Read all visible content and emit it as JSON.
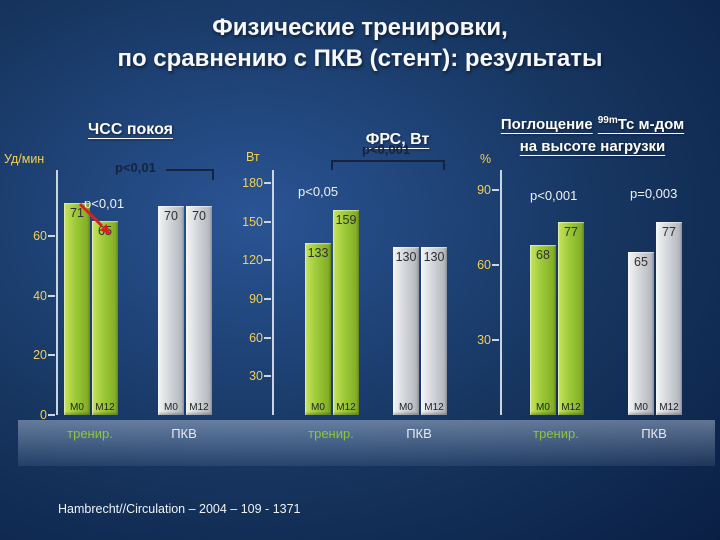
{
  "slide": {
    "title": [
      "Физические тренировки,",
      "по сравнению с ПКВ (стент): результаты"
    ],
    "citation": "Hambrecht//Circulation – 2004 – 109 - 1371"
  },
  "colors": {
    "background": "#16355f",
    "bar_green": "#9cc937",
    "bar_gray": "#d3d6da",
    "tick_yellow": "#f6cf4e",
    "arrow_red": "#dd1f1f",
    "annotation_dark": "#16233e",
    "annotation_light": "#eef2f8",
    "group_label_green": "#8cc63e"
  },
  "chart_data": [
    {
      "type": "bar",
      "title": "ЧСС покоя",
      "ylabel": "Уд/мин",
      "yticks": [
        0,
        20,
        40,
        60
      ],
      "ylim": [
        0,
        82
      ],
      "categories": [
        "М0",
        "М12"
      ],
      "groups": [
        {
          "label": "тренир.",
          "color": "green",
          "values": [
            71,
            65
          ]
        },
        {
          "label": "ПКВ",
          "color": "gray",
          "values": [
            70,
            70
          ]
        }
      ],
      "annotations": [
        {
          "text": "p<0,01",
          "style": "dark-bracket"
        },
        {
          "text": "p<0,01",
          "style": "light-with-red-arrow"
        }
      ],
      "legend_position": "bottom",
      "grid": false
    },
    {
      "type": "bar",
      "title": "ФРС, Вт",
      "ylabel": "Вт",
      "yticks": [
        30,
        60,
        90,
        120,
        150,
        180
      ],
      "ylim": [
        0,
        190
      ],
      "categories": [
        "М0",
        "М12"
      ],
      "groups": [
        {
          "label": "тренир.",
          "color": "green",
          "values": [
            133,
            159
          ]
        },
        {
          "label": "ПКВ",
          "color": "gray",
          "values": [
            130,
            130
          ]
        }
      ],
      "annotations": [
        {
          "text": "p<0,001",
          "style": "dark-bracket"
        },
        {
          "text": "p<0,05",
          "style": "light"
        }
      ],
      "legend_position": "bottom",
      "grid": false
    },
    {
      "type": "bar",
      "title": "Поглощение 99mТс м-дом на высоте нагрузки",
      "title_parts": {
        "pre": "Поглощение",
        "sup": "99m",
        "post": "Тс м-дом",
        "line2": "на высоте нагрузки"
      },
      "ylabel": "%",
      "yticks": [
        30,
        60,
        90
      ],
      "ylim": [
        0,
        98
      ],
      "categories": [
        "М0",
        "М12"
      ],
      "groups": [
        {
          "label": "тренир.",
          "color": "green",
          "values": [
            68,
            77
          ]
        },
        {
          "label": "ПКВ",
          "color": "gray",
          "values": [
            65,
            77
          ]
        }
      ],
      "annotations": [
        {
          "text": "p<0,001",
          "style": "light"
        },
        {
          "text": "p=0,003",
          "style": "light"
        }
      ],
      "legend_position": "bottom",
      "grid": false
    }
  ]
}
